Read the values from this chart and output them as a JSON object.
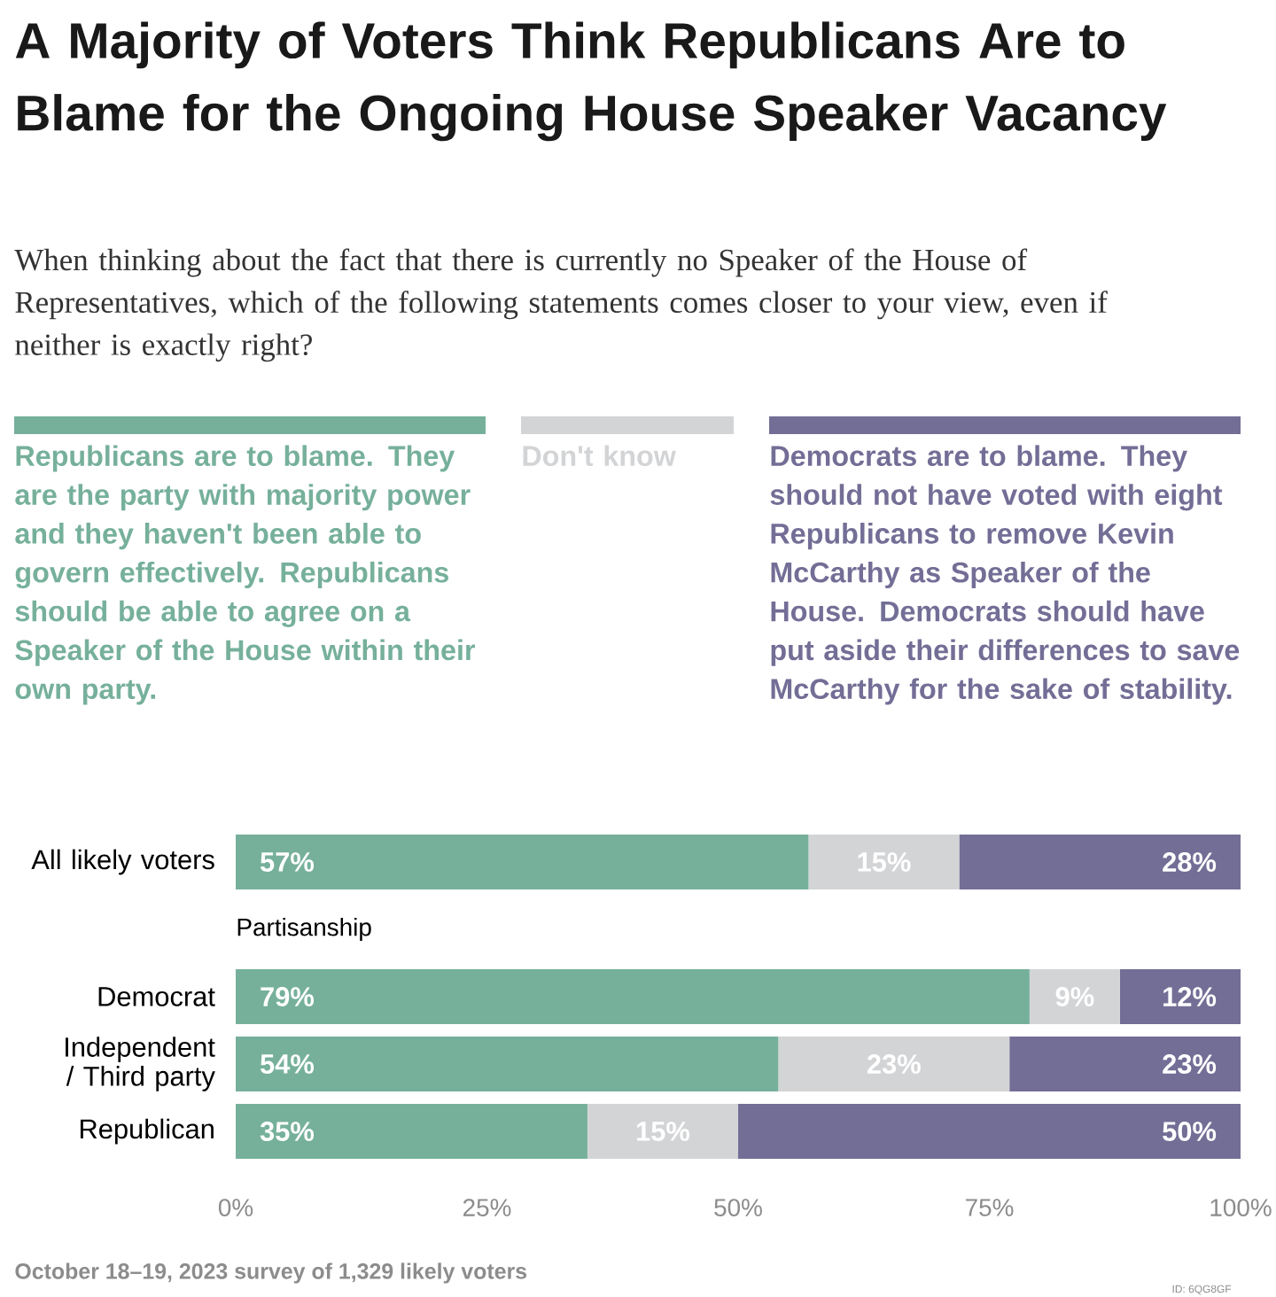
{
  "chart_data": {
    "type": "bar",
    "orientation": "horizontal",
    "stacked": true,
    "legend": "top",
    "title": "A Majority of Voters Think Republicans Are to Blame for the Ongoing House Speaker Vacancy",
    "subtitle": "When thinking about the fact that there is currently no Speaker of the House of Representatives, which of the following statements comes closer to your view, even if neither is exactly right?",
    "categories": [
      "All likely voters",
      null,
      "Democrat",
      "Independent / Third party",
      "Republican"
    ],
    "series": [
      {
        "name": "Republicans are to blame. They are the party with majority power and they haven't been able to govern effectively. Republicans should be able to agree on a Speaker of the House within their own party.",
        "color": "#76b09b",
        "values": [
          57,
          null,
          79,
          54,
          35
        ],
        "value_labels": [
          "57%",
          null,
          "79%",
          "54%",
          "35%"
        ]
      },
      {
        "name": "Don't know",
        "color": "#d3d4d6",
        "values": [
          15,
          null,
          9,
          23,
          15
        ],
        "value_labels": [
          "15%",
          null,
          "9%",
          "23%",
          "15%"
        ]
      },
      {
        "name": "Democrats are to blame. They should not have voted with eight Republicans to remove Kevin McCarthy as Speaker of the House. Democrats should have put aside their differences to save McCarthy for the sake of stability.",
        "color": "#736e96",
        "values": [
          28,
          null,
          12,
          23,
          50
        ],
        "value_labels": [
          "28%",
          null,
          "12%",
          "23%",
          "50%"
        ]
      }
    ],
    "xlim": [
      0,
      100
    ],
    "xticks": [
      {
        "value": 0,
        "label": "0%"
      },
      {
        "value": 25,
        "label": "25%"
      },
      {
        "value": 50,
        "label": "50%"
      },
      {
        "value": 75,
        "label": "75%"
      },
      {
        "value": 100,
        "label": "100%"
      }
    ],
    "annotations": [
      "Partisanship",
      "October 18–19, 2023 survey of 1,329 likely voters",
      "ID: 6QG8GF"
    ]
  }
}
